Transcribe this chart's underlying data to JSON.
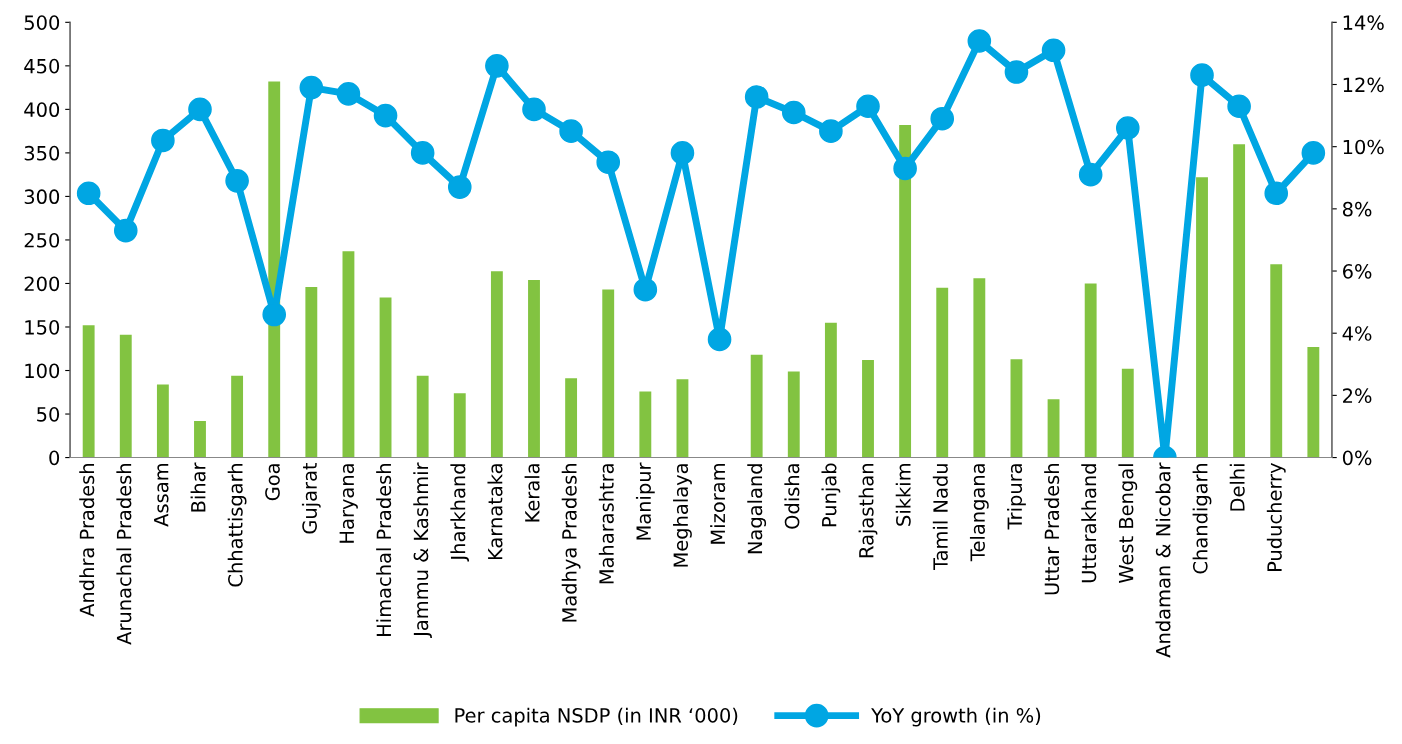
{
  "chart_data": {
    "type": "bar",
    "categories": [
      "Andhra Pradesh",
      "Arunachal Pradesh",
      "Assam",
      "Bihar",
      "Chhattisgarh",
      "Goa",
      "Gujarat",
      "Haryana",
      "Himachal Pradesh",
      "Jammu & Kashmir",
      "Jharkhand",
      "Karnataka",
      "Kerala",
      "Madhya Pradesh",
      "Maharashtra",
      "Manipur",
      "Meghalaya",
      "Mizoram",
      "Nagaland",
      "Odisha",
      "Punjab",
      "Rajasthan",
      "Sikkim",
      "Tamil Nadu",
      "Telangana",
      "Tripura",
      "Uttar Pradesh",
      "Uttarakhand",
      "West Bengal",
      "Andaman & Nicobar",
      "Chandigarh",
      "Delhi",
      "Puducherry",
      null
    ],
    "series": [
      {
        "name": "Per capita NSDP (in INR ‘000)",
        "color": "#82c341",
        "values": [
          152,
          141,
          84,
          42,
          94,
          432,
          196,
          237,
          184,
          94,
          74,
          214,
          204,
          91,
          193,
          76,
          90,
          null,
          118,
          99,
          155,
          112,
          382,
          195,
          206,
          113,
          67,
          200,
          102,
          null,
          322,
          360,
          222,
          127
        ]
      },
      {
        "name": "YoY growth (in %)",
        "type": "line",
        "axis": "y2",
        "color": "#00a6e3",
        "marker": "circle",
        "values": [
          8.5,
          7.3,
          10.2,
          11.2,
          8.9,
          4.6,
          11.9,
          11.7,
          11.0,
          9.8,
          8.7,
          12.6,
          11.2,
          10.5,
          9.5,
          5.4,
          9.8,
          3.8,
          11.6,
          11.1,
          10.5,
          11.3,
          9.3,
          10.9,
          13.4,
          12.4,
          13.1,
          9.1,
          10.6,
          0.0,
          12.3,
          11.3,
          8.5,
          9.8
        ]
      }
    ],
    "ylim": [
      0,
      500
    ],
    "yticks": [
      0,
      50,
      100,
      150,
      200,
      250,
      300,
      350,
      400,
      450,
      500
    ],
    "y2lim": [
      0,
      14
    ],
    "y2ticks": [
      {
        "value": 0,
        "label": "0%"
      },
      {
        "value": 2,
        "label": "2%"
      },
      {
        "value": 4,
        "label": "4%"
      },
      {
        "value": 6,
        "label": "6%"
      },
      {
        "value": 8,
        "label": "8%"
      },
      {
        "value": 10,
        "label": "10%"
      },
      {
        "value": 12,
        "label": "12%"
      },
      {
        "value": 14,
        "label": "14%"
      }
    ],
    "grid": false,
    "legend": "bottom"
  }
}
